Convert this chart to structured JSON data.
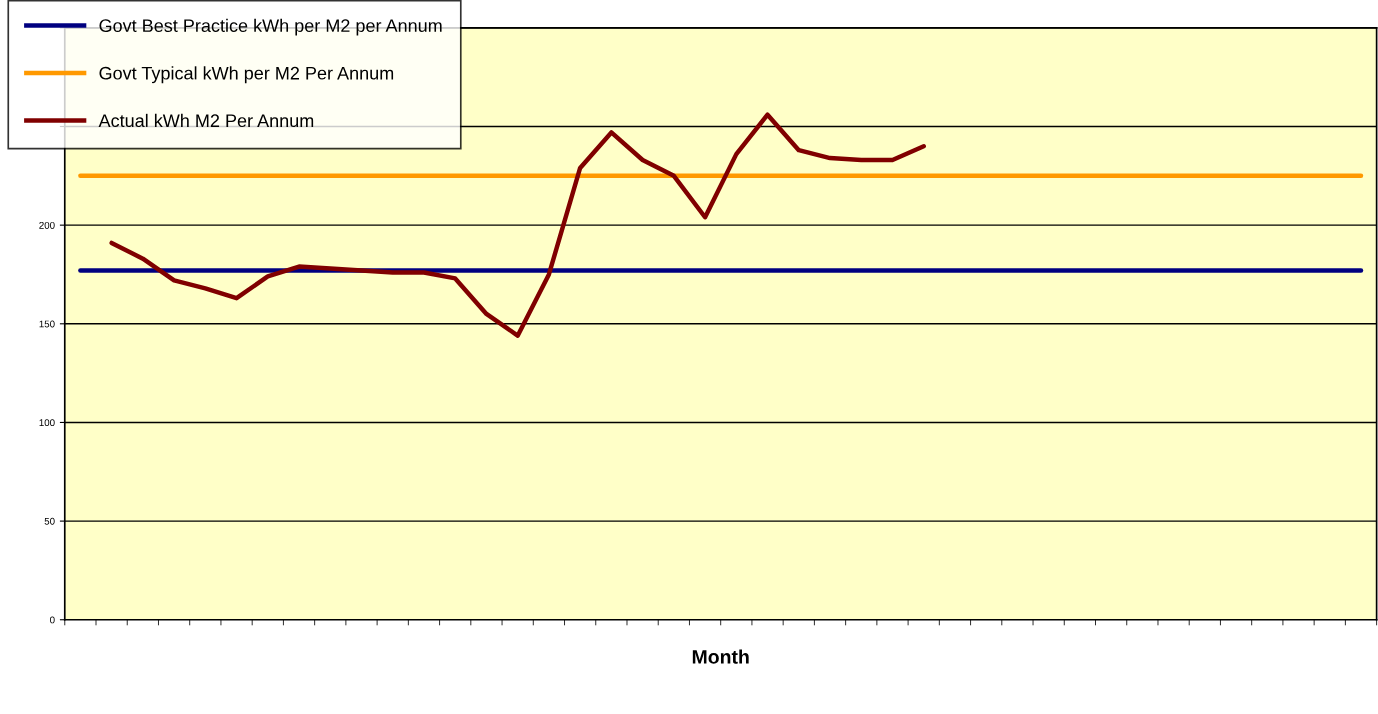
{
  "chart_data": {
    "type": "line",
    "xlabel": "Month",
    "categories": [
      null,
      null,
      null,
      null,
      null,
      null,
      null,
      null,
      null,
      null,
      null,
      null,
      null,
      null,
      null,
      null,
      null,
      null,
      null,
      null,
      null,
      null,
      null,
      null,
      null,
      null,
      null,
      null,
      null,
      null,
      null,
      null,
      null,
      null,
      null,
      null,
      null,
      null,
      null,
      null,
      null,
      null
    ],
    "series": [
      {
        "name": "Govt Best Practice kWh per M2 per Annum",
        "color": "#000080",
        "values": [
          177,
          177,
          177,
          177,
          177,
          177,
          177,
          177,
          177,
          177,
          177,
          177,
          177,
          177,
          177,
          177,
          177,
          177,
          177,
          177,
          177,
          177,
          177,
          177,
          177,
          177,
          177,
          177,
          177,
          177,
          177,
          177,
          177,
          177,
          177,
          177,
          177,
          177,
          177,
          177,
          177,
          177
        ]
      },
      {
        "name": "Govt Typical kWh per M2 Per Annum",
        "color": "#ff9900",
        "values": [
          225,
          225,
          225,
          225,
          225,
          225,
          225,
          225,
          225,
          225,
          225,
          225,
          225,
          225,
          225,
          225,
          225,
          225,
          225,
          225,
          225,
          225,
          225,
          225,
          225,
          225,
          225,
          225,
          225,
          225,
          225,
          225,
          225,
          225,
          225,
          225,
          225,
          225,
          225,
          225,
          225,
          225
        ]
      },
      {
        "name": "Actual kWh M2 Per Annum",
        "color": "#800000",
        "values": [
          null,
          191,
          183,
          172,
          168,
          163,
          174,
          179,
          178,
          177,
          176,
          176,
          173,
          155,
          144,
          175,
          229,
          247,
          233,
          225,
          204,
          236,
          256,
          238,
          234,
          233,
          233,
          240,
          null,
          null,
          null,
          null,
          null,
          null,
          null,
          null,
          null,
          null,
          null,
          null,
          null,
          null
        ]
      }
    ],
    "ylim": [
      0,
      300
    ],
    "yticks": [
      0,
      50,
      100,
      150,
      200,
      {
        "value": 250,
        "label": null
      },
      {
        "value": 300,
        "label": null
      }
    ],
    "grid": "y",
    "legend": "top left",
    "marker": "none",
    "line_style": "solid"
  }
}
